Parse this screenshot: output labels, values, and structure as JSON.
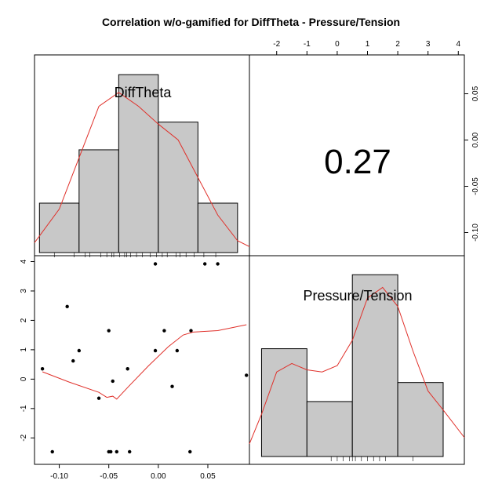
{
  "chart_data": {
    "type": "pairs",
    "title": "Correlation w/o-gamified for DiffTheta - Pressure/Tension",
    "variables": [
      "DiffTheta",
      "Pressure/Tension"
    ],
    "correlation": {
      "label": "0.27",
      "value": 0.27
    },
    "axes": {
      "DiffTheta": {
        "range": [
          -0.125,
          0.092
        ],
        "ticks": [
          -0.1,
          -0.05,
          0.0,
          0.05
        ],
        "tick_labels": [
          "-0.10",
          "-0.05",
          "0.00",
          "0.05"
        ]
      },
      "Pressure/Tension": {
        "range": [
          -2.9,
          4.2
        ],
        "ticks": [
          -2,
          -1,
          0,
          1,
          2,
          3,
          4
        ],
        "tick_labels": [
          "-2",
          "-1",
          "0",
          "1",
          "2",
          "3",
          "4"
        ]
      }
    },
    "diffTheta_hist": {
      "breaks": [
        -0.12,
        -0.08,
        -0.04,
        0.0,
        0.04,
        0.08
      ],
      "heights": [
        2.5,
        5.2,
        9.0,
        6.6,
        2.5
      ],
      "ymax": 10.0
    },
    "diffTheta_density": [
      [
        -0.125,
        0.5
      ],
      [
        -0.1,
        2.2
      ],
      [
        -0.08,
        4.8
      ],
      [
        -0.06,
        7.4
      ],
      [
        -0.04,
        8.1
      ],
      [
        -0.02,
        7.4
      ],
      [
        0.0,
        6.5
      ],
      [
        0.02,
        5.7
      ],
      [
        0.04,
        3.8
      ],
      [
        0.06,
        1.9
      ],
      [
        0.08,
        0.6
      ],
      [
        0.092,
        0.3
      ]
    ],
    "diffTheta_rug": [
      -0.105,
      -0.085,
      -0.074,
      -0.069,
      -0.058,
      -0.052,
      -0.047,
      -0.045,
      -0.039,
      -0.034,
      -0.032,
      -0.028,
      -0.022,
      -0.016,
      -0.008,
      -0.002,
      0.004,
      0.009,
      0.018,
      0.022,
      0.028,
      0.036,
      0.046,
      0.058
    ],
    "pressure_hist": {
      "breaks": [
        -2.5,
        -1.0,
        0.5,
        2.0,
        3.5
      ],
      "heights": [
        5.1,
        2.6,
        8.6,
        3.5
      ],
      "ymax": 9.5
    },
    "pressure_density": [
      [
        -2.9,
        0.6
      ],
      [
        -2.5,
        2.0
      ],
      [
        -2.0,
        4.0
      ],
      [
        -1.5,
        4.4
      ],
      [
        -1.0,
        4.1
      ],
      [
        -0.5,
        4.0
      ],
      [
        0.0,
        4.3
      ],
      [
        0.5,
        5.5
      ],
      [
        1.0,
        7.5
      ],
      [
        1.5,
        8.0
      ],
      [
        2.0,
        7.1
      ],
      [
        2.5,
        5.0
      ],
      [
        3.0,
        3.1
      ],
      [
        3.5,
        2.2
      ],
      [
        4.2,
        0.9
      ]
    ],
    "pressure_rug": [
      -0.2,
      0.0,
      0.2,
      0.4,
      0.5,
      0.6,
      0.8,
      1.0,
      1.2,
      1.4,
      1.6,
      2.5
    ],
    "scatter": [
      {
        "x": -0.117,
        "y": 0.35
      },
      {
        "x": -0.107,
        "y": -2.47
      },
      {
        "x": -0.092,
        "y": 2.47
      },
      {
        "x": -0.086,
        "y": 0.62
      },
      {
        "x": -0.08,
        "y": 0.97
      },
      {
        "x": -0.06,
        "y": -0.65
      },
      {
        "x": -0.05,
        "y": 1.65
      },
      {
        "x": -0.05,
        "y": -2.47
      },
      {
        "x": -0.048,
        "y": -2.47
      },
      {
        "x": -0.046,
        "y": -0.07
      },
      {
        "x": -0.042,
        "y": -2.47
      },
      {
        "x": -0.031,
        "y": 0.35
      },
      {
        "x": -0.029,
        "y": -2.47
      },
      {
        "x": -0.003,
        "y": 3.92
      },
      {
        "x": -0.003,
        "y": 0.97
      },
      {
        "x": 0.006,
        "y": 1.65
      },
      {
        "x": 0.014,
        "y": -0.25
      },
      {
        "x": 0.019,
        "y": 0.97
      },
      {
        "x": 0.032,
        "y": -2.47
      },
      {
        "x": 0.033,
        "y": 1.65
      },
      {
        "x": 0.047,
        "y": 3.92
      },
      {
        "x": 0.06,
        "y": 3.92
      },
      {
        "x": 0.089,
        "y": 0.13
      }
    ],
    "smooth": [
      [
        -0.117,
        0.25
      ],
      [
        -0.09,
        -0.1
      ],
      [
        -0.06,
        -0.45
      ],
      [
        -0.052,
        -0.62
      ],
      [
        -0.046,
        -0.58
      ],
      [
        -0.042,
        -0.68
      ],
      [
        -0.03,
        -0.25
      ],
      [
        -0.01,
        0.45
      ],
      [
        0.01,
        1.1
      ],
      [
        0.025,
        1.5
      ],
      [
        0.035,
        1.6
      ],
      [
        0.06,
        1.65
      ],
      [
        0.089,
        1.85
      ]
    ],
    "colors": {
      "bar_fill": "#c8c8c8",
      "density": "#e0302a",
      "smooth": "#e0302a",
      "points": "#000000"
    }
  }
}
